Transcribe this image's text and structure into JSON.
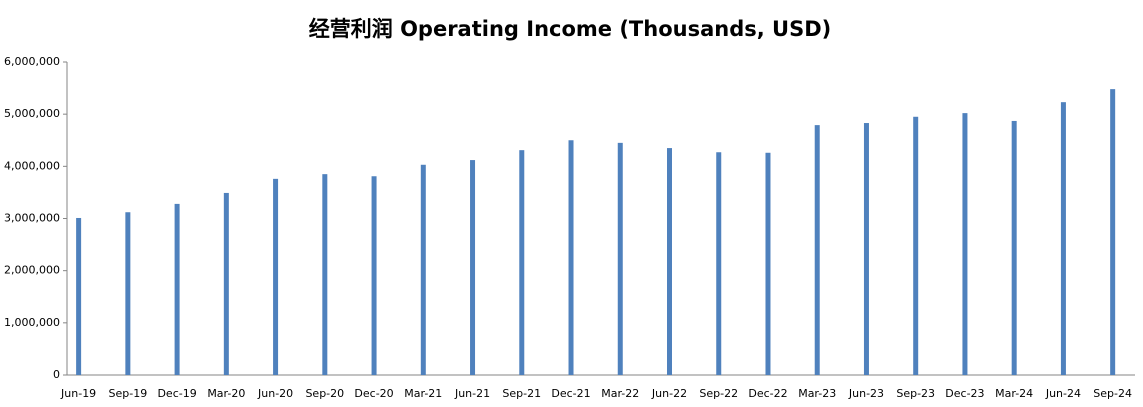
{
  "chart_data": {
    "type": "bar",
    "title": "经营利润 Operating Income (Thousands, USD)",
    "categories": [
      "Jun-19",
      "Sep-19",
      "Dec-19",
      "Mar-20",
      "Jun-20",
      "Sep-20",
      "Dec-20",
      "Mar-21",
      "Jun-21",
      "Sep-21",
      "Dec-21",
      "Mar-22",
      "Jun-22",
      "Sep-22",
      "Dec-22",
      "Mar-23",
      "Jun-23",
      "Sep-23",
      "Dec-23",
      "Mar-24",
      "Jun-24",
      "Sep-24"
    ],
    "values": [
      3010000,
      3120000,
      3280000,
      3490000,
      3760000,
      3850000,
      3810000,
      4030000,
      4120000,
      4310000,
      4500000,
      4450000,
      4350000,
      4270000,
      4260000,
      4790000,
      4830000,
      4950000,
      5020000,
      4870000,
      5230000,
      5480000
    ],
    "color": "#4f81bd",
    "ylim": [
      0,
      6000000
    ],
    "yticks": [
      0,
      {
        "value": 1000000,
        "label": "1,000,000"
      },
      {
        "value": 2000000,
        "label": "2,000,000"
      },
      {
        "value": 3000000,
        "label": "3,000,000"
      },
      {
        "value": 4000000,
        "label": "4,000,000"
      },
      {
        "value": 5000000,
        "label": "5,000,000"
      },
      {
        "value": 6000000,
        "label": "6,000,000"
      }
    ],
    "grid": false
  }
}
